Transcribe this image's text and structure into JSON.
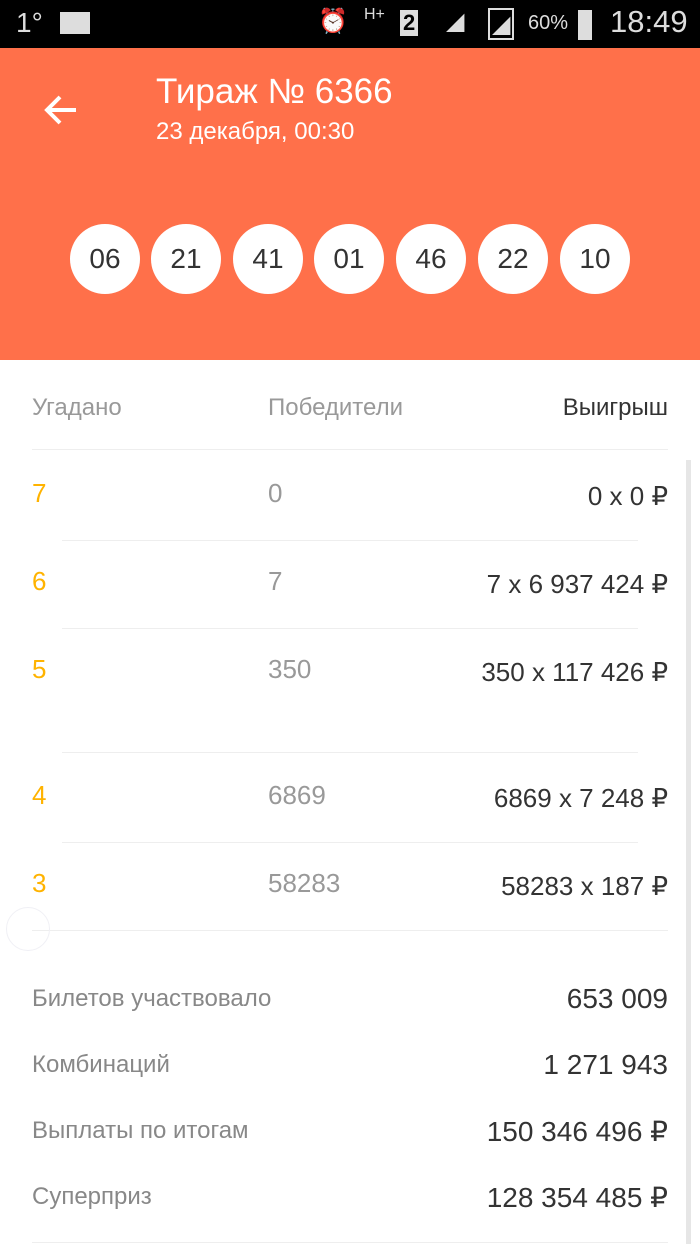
{
  "status_bar": {
    "temp": "1°",
    "battery": "60%",
    "time": "18:49",
    "network": "H+",
    "sim": "2"
  },
  "header": {
    "title": "Тираж № 6366",
    "subtitle": "23 декабря, 00:30",
    "balls": [
      "06",
      "21",
      "41",
      "01",
      "46",
      "22",
      "10"
    ],
    "color": "#ff704a"
  },
  "table": {
    "headers": [
      "Угадано",
      "Победители",
      "Выигрыш"
    ],
    "rows": [
      {
        "guessed": "7",
        "winners": "0",
        "prize": "0 x 0 ₽"
      },
      {
        "guessed": "6",
        "winners": "7",
        "prize": "7 x 6 937 424 ₽"
      },
      {
        "guessed": "5",
        "winners": "350",
        "prize": "350 x 117 426 ₽"
      },
      {
        "guessed": "4",
        "winners": "6869",
        "prize": "6869 x 7 248 ₽"
      },
      {
        "guessed": "3",
        "winners": "58283",
        "prize": "58283 x 187 ₽"
      }
    ],
    "accent": "#ffb300"
  },
  "summary": [
    {
      "label": "Билетов участвовало",
      "value": "653 009"
    },
    {
      "label": "Комбинаций",
      "value": "1 271 943"
    },
    {
      "label": "Выплаты по итогам",
      "value": "150 346 496 ₽"
    },
    {
      "label": "Суперприз",
      "value": "128 354 485 ₽"
    }
  ]
}
